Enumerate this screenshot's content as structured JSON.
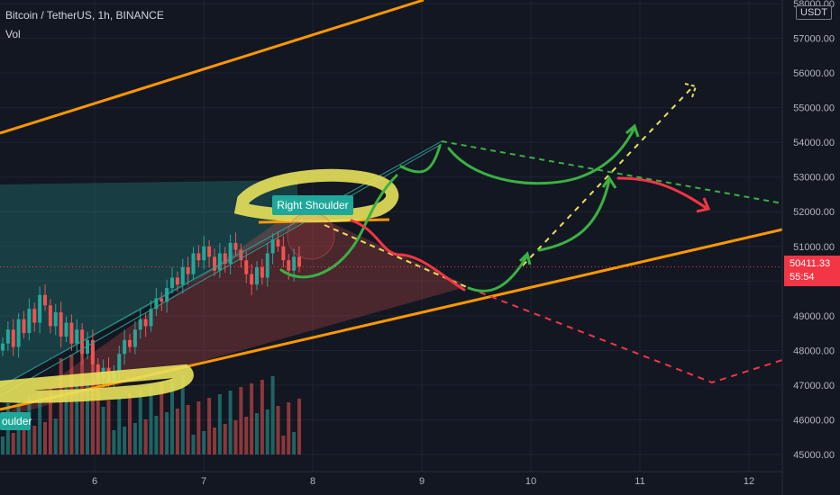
{
  "header": {
    "symbol_line": "Bitcoin / TetherUS, 1h, BINANCE",
    "indicator": "Vol"
  },
  "currency_badge": "USDT",
  "last_price": {
    "value": "50411.33",
    "countdown": "55:54",
    "color": "#f23645"
  },
  "colors": {
    "background": "#131722",
    "up_candle": "#26a69a",
    "down_candle": "#ef5350",
    "trendline_orange": "#ff9800",
    "highlight_yellow": "#e8e15a",
    "arrow_green": "#3bb143",
    "arrow_red": "#f23645",
    "label_teal": "#1fa89a"
  },
  "annotations": {
    "right_shoulder": "Right Shoulder",
    "left_shoulder_partial": "oulder"
  },
  "chart_data": {
    "type": "candlestick",
    "title": "Bitcoin / TetherUS, 1h, BINANCE",
    "xlabel": "",
    "ylabel": "",
    "x_ticks": [
      "6",
      "7",
      "8",
      "9",
      "10",
      "11",
      "12"
    ],
    "y_ticks": [
      "45000.00",
      "46000.00",
      "47000.00",
      "48000.00",
      "49000.00",
      "50000.00",
      "51000.00",
      "52000.00",
      "53000.00",
      "54000.00",
      "55000.00",
      "56000.00",
      "57000.00",
      "58000.00"
    ],
    "ylim": [
      44400,
      58200
    ],
    "grid": true,
    "volume_series_name": "Vol",
    "price_series": [
      48200,
      48600,
      48100,
      48900,
      48500,
      49200,
      48800,
      49600,
      49300,
      48700,
      49100,
      48400,
      48800,
      48200,
      48600,
      47900,
      48300,
      47600,
      47200,
      47500,
      47100,
      47400,
      47900,
      48300,
      48100,
      48600,
      48900,
      48700,
      49200,
      49500,
      49400,
      49800,
      50100,
      49900,
      50400,
      50200,
      50800,
      50600,
      51000,
      50700,
      50300,
      50800,
      50500,
      51100,
      50900,
      50600,
      50200,
      49900,
      50400,
      50100,
      50800,
      51200,
      51000,
      50600,
      50300,
      50700,
      50411
    ]
  }
}
